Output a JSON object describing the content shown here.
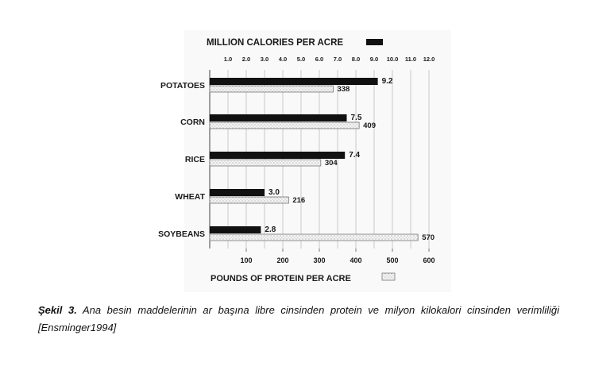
{
  "chart_data": {
    "type": "bar",
    "orientation": "horizontal",
    "categories": [
      "POTATOES",
      "CORN",
      "RICE",
      "WHEAT",
      "SOYBEANS"
    ],
    "series": [
      {
        "name": "MILLION CALORIES PER ACRE",
        "values": [
          9.2,
          7.5,
          7.4,
          3.0,
          2.8
        ],
        "value_labels": [
          "9.2",
          "7.5",
          "7.4",
          "3.0",
          "2.8"
        ],
        "color": "#111111",
        "axis": "top"
      },
      {
        "name": "POUNDS OF PROTEIN PER ACRE",
        "values": [
          338,
          409,
          304,
          216,
          570
        ],
        "value_labels": [
          "338",
          "409",
          "304",
          "216",
          "570"
        ],
        "color": "#f2f2f2",
        "axis": "bottom"
      }
    ],
    "top_axis": {
      "title": "MILLION CALORIES PER ACRE",
      "range": [
        0,
        12
      ],
      "ticks": [
        "1.0",
        "2.0",
        "3.0",
        "4.0",
        "5.0",
        "6.0",
        "7.0",
        "8.0",
        "9.0",
        "10.0",
        "11.0",
        "12.0"
      ]
    },
    "bottom_axis": {
      "title": "POUNDS OF PROTEIN PER ACRE",
      "range": [
        0,
        600
      ],
      "ticks": [
        "100",
        "200",
        "300",
        "400",
        "500",
        "600"
      ]
    },
    "grid": true,
    "legend": "axis-titles"
  },
  "caption": {
    "label": "Şekil 3.",
    "text": " Ana besin maddelerinin ar başına libre cinsinden protein ve milyon kilokalori cinsinden verimliliği [Ensminger1994]"
  }
}
